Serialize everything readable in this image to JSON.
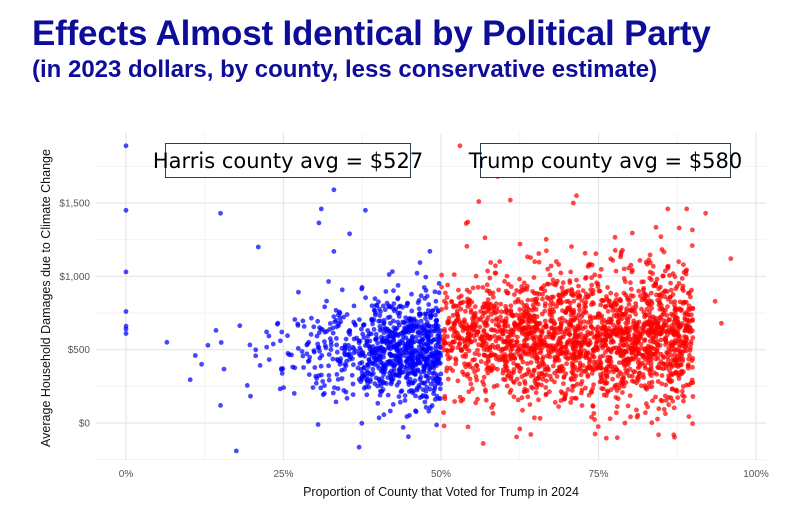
{
  "title": "Effects Almost Identical by Political Party",
  "subtitle": "(in 2023 dollars, by county, less conservative estimate)",
  "chart_data": {
    "type": "scatter",
    "xlabel": "Proportion of County that Voted for Trump in 2024",
    "ylabel": "Average Household Damages due to Climate Change",
    "xlim": [
      -0.05,
      1.02
    ],
    "ylim": [
      -250,
      1980
    ],
    "x_ticks": [
      {
        "v": 0,
        "label": "0%"
      },
      {
        "v": 0.25,
        "label": "25%"
      },
      {
        "v": 0.5,
        "label": "50%"
      },
      {
        "v": 0.75,
        "label": "75%"
      },
      {
        "v": 1,
        "label": "100%"
      }
    ],
    "y_ticks": [
      {
        "v": 0,
        "label": "$0"
      },
      {
        "v": 500,
        "label": "$500"
      },
      {
        "v": 1000,
        "label": "$1,000"
      },
      {
        "v": 1500,
        "label": "$1,500"
      }
    ],
    "grid": true,
    "annotations": [
      {
        "text": "Harris county avg = $527",
        "series": "Harris"
      },
      {
        "text": "Trump county avg = $580",
        "series": "Trump"
      }
    ],
    "series": [
      {
        "name": "Harris",
        "color": "#0000ff",
        "average": 527,
        "cluster": {
          "count": 900,
          "x_peak": 0.5,
          "x_spread": 0.1,
          "x_min": 0.06,
          "y_mean": 500,
          "y_sd": 190
        },
        "outliers": [
          [
            0,
            1890
          ],
          [
            0,
            1450
          ],
          [
            0,
            1030
          ],
          [
            0,
            760
          ],
          [
            0,
            660
          ],
          [
            0,
            640
          ],
          [
            0,
            610
          ],
          [
            0.15,
            1430
          ],
          [
            0.175,
            -190
          ],
          [
            0.27,
            1700
          ],
          [
            0.42,
            1700
          ],
          [
            0.33,
            1590
          ],
          [
            0.31,
            1460
          ],
          [
            0.38,
            1450
          ],
          [
            0.37,
            -165
          ],
          [
            0.44,
            -30
          ],
          [
            0.305,
            -10
          ],
          [
            0.065,
            550
          ],
          [
            0.11,
            460
          ],
          [
            0.15,
            120
          ],
          [
            0.21,
            1200
          ],
          [
            0.355,
            1290
          ],
          [
            0.33,
            1170
          ],
          [
            0.13,
            530
          ],
          [
            0.12,
            400
          ]
        ]
      },
      {
        "name": "Trump",
        "color": "#ff0000",
        "average": 580,
        "cluster": {
          "count": 2100,
          "x_min": 0.5,
          "x_max": 0.9,
          "y_mean": 580,
          "y_sd": 220
        },
        "outliers": [
          [
            0.53,
            1890
          ],
          [
            0.59,
            1680
          ],
          [
            0.81,
            1700
          ],
          [
            0.567,
            -140
          ],
          [
            0.62,
            -95
          ],
          [
            0.505,
            -20
          ],
          [
            0.715,
            1550
          ],
          [
            0.71,
            1500
          ],
          [
            0.86,
            1460
          ],
          [
            0.89,
            1460
          ],
          [
            0.92,
            1430
          ],
          [
            0.96,
            1120
          ],
          [
            0.935,
            830
          ],
          [
            0.945,
            680
          ],
          [
            0.56,
            1510
          ],
          [
            0.61,
            1520
          ],
          [
            0.54,
            1360
          ]
        ]
      }
    ]
  }
}
